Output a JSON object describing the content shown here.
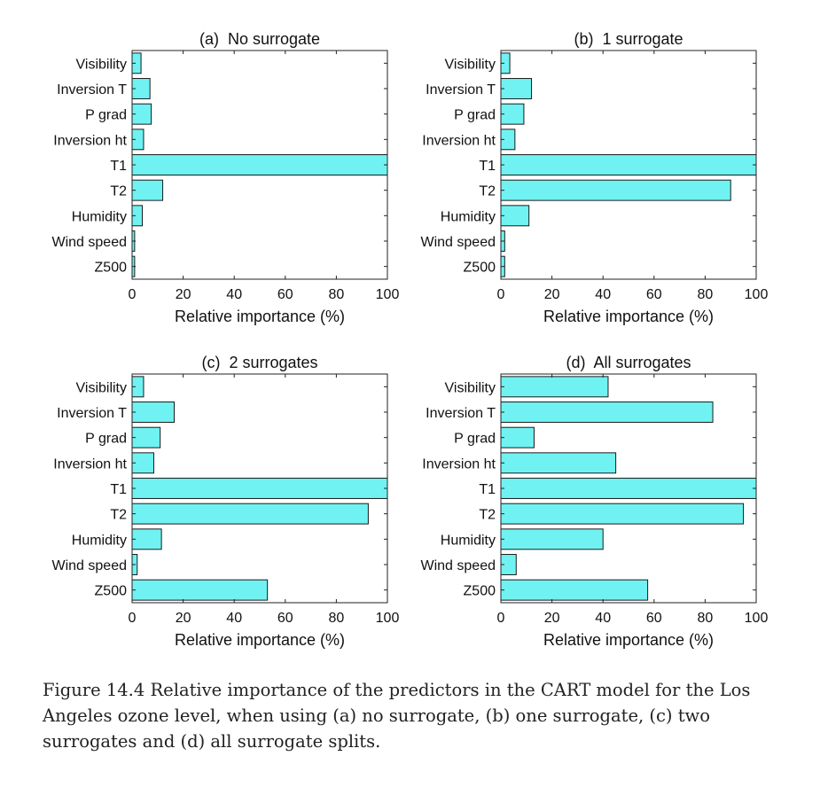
{
  "figure": {
    "caption": "Figure 14.4 Relative importance of the predictors in the CART model for the Los Angeles ozone level, when using (a) no surrogate, (b) one surrogate, (c) two surrogates and (d) all surrogate splits."
  },
  "style": {
    "bar_fill": "#70f2f2",
    "bar_stroke": "#1a1a1a"
  },
  "chart_data": [
    {
      "type": "bar",
      "orientation": "horizontal",
      "title": "(a)  No surrogate",
      "categories": [
        "Visibility",
        "Inversion T",
        "P grad",
        "Inversion ht",
        "T1",
        "T2",
        "Humidity",
        "Wind speed",
        "Z500"
      ],
      "values": [
        3.5,
        7,
        7.5,
        4.5,
        100,
        12,
        4,
        1,
        1
      ],
      "xlabel": "Relative importance (%)",
      "xlim": [
        0,
        100
      ],
      "xticks": [
        0,
        20,
        40,
        60,
        80,
        100
      ]
    },
    {
      "type": "bar",
      "orientation": "horizontal",
      "title": "(b)  1 surrogate",
      "categories": [
        "Visibility",
        "Inversion T",
        "P grad",
        "Inversion ht",
        "T1",
        "T2",
        "Humidity",
        "Wind speed",
        "Z500"
      ],
      "values": [
        3.5,
        12,
        9,
        5.5,
        100,
        90,
        11,
        1.5,
        1.5
      ],
      "xlabel": "Relative importance (%)",
      "xlim": [
        0,
        100
      ],
      "xticks": [
        0,
        20,
        40,
        60,
        80,
        100
      ]
    },
    {
      "type": "bar",
      "orientation": "horizontal",
      "title": "(c)  2 surrogates",
      "categories": [
        "Visibility",
        "Inversion T",
        "P grad",
        "Inversion ht",
        "T1",
        "T2",
        "Humidity",
        "Wind speed",
        "Z500"
      ],
      "values": [
        4.5,
        16.5,
        11,
        8.5,
        100,
        92.5,
        11.5,
        2,
        53
      ],
      "xlabel": "Relative importance (%)",
      "xlim": [
        0,
        100
      ],
      "xticks": [
        0,
        20,
        40,
        60,
        80,
        100
      ]
    },
    {
      "type": "bar",
      "orientation": "horizontal",
      "title": "(d)  All surrogates",
      "categories": [
        "Visibility",
        "Inversion T",
        "P grad",
        "Inversion ht",
        "T1",
        "T2",
        "Humidity",
        "Wind speed",
        "Z500"
      ],
      "values": [
        42,
        83,
        13,
        45,
        100,
        95,
        40,
        6,
        57.5
      ],
      "xlabel": "Relative importance (%)",
      "xlim": [
        0,
        100
      ],
      "xticks": [
        0,
        20,
        40,
        60,
        80,
        100
      ]
    }
  ]
}
